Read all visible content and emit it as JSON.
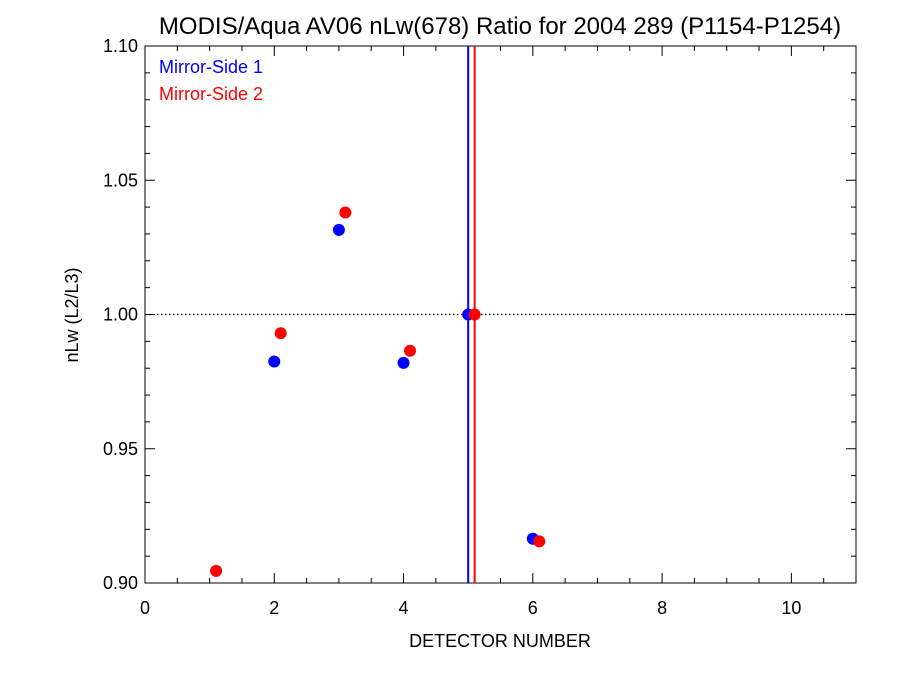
{
  "chart_data": {
    "type": "scatter",
    "title": "MODIS/Aqua AV06 nLw(678) Ratio for 2004 289 (P1154-P1254)",
    "xlabel": "DETECTOR NUMBER",
    "ylabel": "nLw (L2/L3)",
    "xlim": [
      0,
      11
    ],
    "ylim": [
      0.9,
      1.1
    ],
    "x_ticks": [
      0,
      2,
      4,
      6,
      8,
      10
    ],
    "x_tick_labels": [
      "0",
      "2",
      "4",
      "6",
      "8",
      "10"
    ],
    "y_ticks": [
      0.9,
      0.95,
      1.0,
      1.05,
      1.1
    ],
    "y_tick_labels": [
      "0.90",
      "0.95",
      "1.00",
      "1.05",
      "1.10"
    ],
    "reference_line_y": 1.0,
    "legend_position": "top-left",
    "series": [
      {
        "name": "Mirror-Side 1",
        "color": "#0000ff",
        "vline_x": 5.0,
        "points": [
          {
            "x": 2,
            "y": 0.9825
          },
          {
            "x": 3,
            "y": 1.0315
          },
          {
            "x": 4,
            "y": 0.982
          },
          {
            "x": 5,
            "y": 1.0
          },
          {
            "x": 6,
            "y": 0.9165
          }
        ]
      },
      {
        "name": "Mirror-Side 2",
        "color": "#ff0000",
        "vline_x": 5.1,
        "points": [
          {
            "x": 1.1,
            "y": 0.9045
          },
          {
            "x": 2.1,
            "y": 0.993
          },
          {
            "x": 3.1,
            "y": 1.038
          },
          {
            "x": 4.1,
            "y": 0.9865
          },
          {
            "x": 5.1,
            "y": 1.0
          },
          {
            "x": 6.1,
            "y": 0.9155
          }
        ]
      }
    ]
  }
}
